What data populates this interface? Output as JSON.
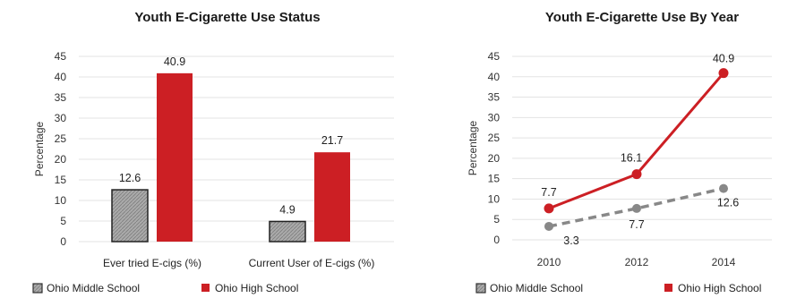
{
  "colors": {
    "middle_school": "#aaaaaa",
    "high_school": "#cc1f24",
    "middle_line": "#888888",
    "grid": "#e3e3e3"
  },
  "chart_data": [
    {
      "type": "bar",
      "title": "Youth E-Cigarette Use Status",
      "ylabel": "Percentage",
      "xlabel": "",
      "ylim": [
        0,
        45
      ],
      "yticks": [
        "0",
        "5",
        "10",
        "15",
        "20",
        "25",
        "30",
        "35",
        "40",
        "45"
      ],
      "grid": true,
      "legend": "bottom",
      "categories": [
        "Ever tried E-cigs (%)",
        "Current User of E-cigs (%)"
      ],
      "series": [
        {
          "name": "Ohio Middle School",
          "values": [
            12.6,
            4.9
          ],
          "labels": [
            "12.6",
            "4.9"
          ]
        },
        {
          "name": "Ohio High School",
          "values": [
            40.9,
            21.7
          ],
          "labels": [
            "40.9",
            "21.7"
          ]
        }
      ]
    },
    {
      "type": "line",
      "title": "Youth E-Cigarette Use By Year",
      "ylabel": "Percentage",
      "xlabel": "",
      "ylim": [
        0,
        45
      ],
      "yticks": [
        "0",
        "5",
        "10",
        "15",
        "20",
        "25",
        "30",
        "35",
        "40",
        "45"
      ],
      "grid": true,
      "legend": "bottom",
      "x": [
        "2010",
        "2012",
        "2014"
      ],
      "series": [
        {
          "name": "Ohio Middle School",
          "values": [
            3.3,
            7.7,
            12.6
          ],
          "labels": [
            "3.3",
            "7.7",
            "12.6"
          ],
          "style": "dashed"
        },
        {
          "name": "Ohio High School",
          "values": [
            7.7,
            16.1,
            40.9
          ],
          "labels": [
            "7.7",
            "16.1",
            "40.9"
          ],
          "style": "solid"
        }
      ]
    }
  ]
}
